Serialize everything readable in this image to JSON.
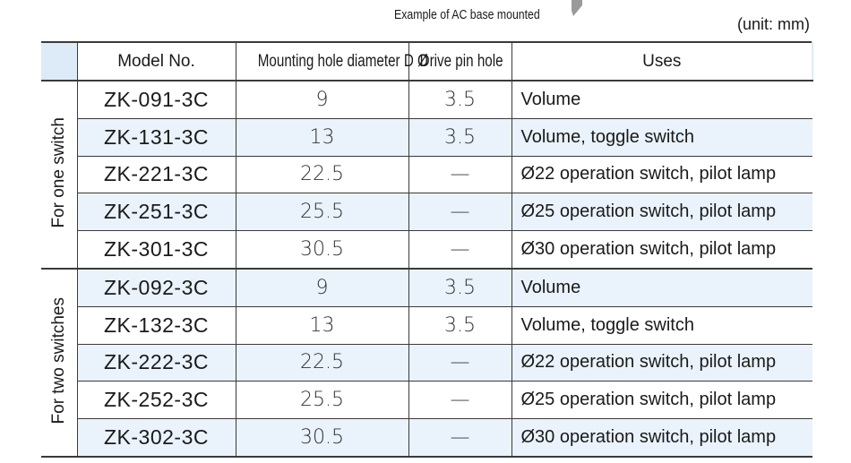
{
  "caption": "Example of AC base mounted",
  "unit": "(unit: mm)",
  "headers": {
    "model": "Model No.",
    "diameter": "Mounting hole diameter D Ø",
    "pin": "Drive pin hole",
    "uses": "Uses"
  },
  "groups": [
    {
      "label": "For one switch"
    },
    {
      "label": "For two switches"
    }
  ],
  "rows": [
    {
      "model": "ZK-091-3C",
      "diameter": "9",
      "pin": "3.5",
      "uses": "Volume"
    },
    {
      "model": "ZK-131-3C",
      "diameter": "13",
      "pin": "3.5",
      "uses": "Volume, toggle switch"
    },
    {
      "model": "ZK-221-3C",
      "diameter": "22.5",
      "pin": "—",
      "uses": "Ø22 operation switch, pilot lamp"
    },
    {
      "model": "ZK-251-3C",
      "diameter": "25.5",
      "pin": "—",
      "uses": "Ø25 operation switch, pilot lamp"
    },
    {
      "model": "ZK-301-3C",
      "diameter": "30.5",
      "pin": "—",
      "uses": "Ø30 operation switch, pilot lamp"
    },
    {
      "model": "ZK-092-3C",
      "diameter": "9",
      "pin": "3.5",
      "uses": "Volume"
    },
    {
      "model": "ZK-132-3C",
      "diameter": "13",
      "pin": "3.5",
      "uses": "Volume, toggle switch"
    },
    {
      "model": "ZK-222-3C",
      "diameter": "22.5",
      "pin": "—",
      "uses": "Ø22 operation switch, pilot lamp"
    },
    {
      "model": "ZK-252-3C",
      "diameter": "25.5",
      "pin": "—",
      "uses": "Ø25 operation switch, pilot lamp"
    },
    {
      "model": "ZK-302-3C",
      "diameter": "30.5",
      "pin": "—",
      "uses": "Ø30 operation switch, pilot lamp"
    }
  ],
  "colors": {
    "header_shade": "#dcebf7",
    "row_shade": "#eaf3fb",
    "rule": "#3a3a3a"
  }
}
